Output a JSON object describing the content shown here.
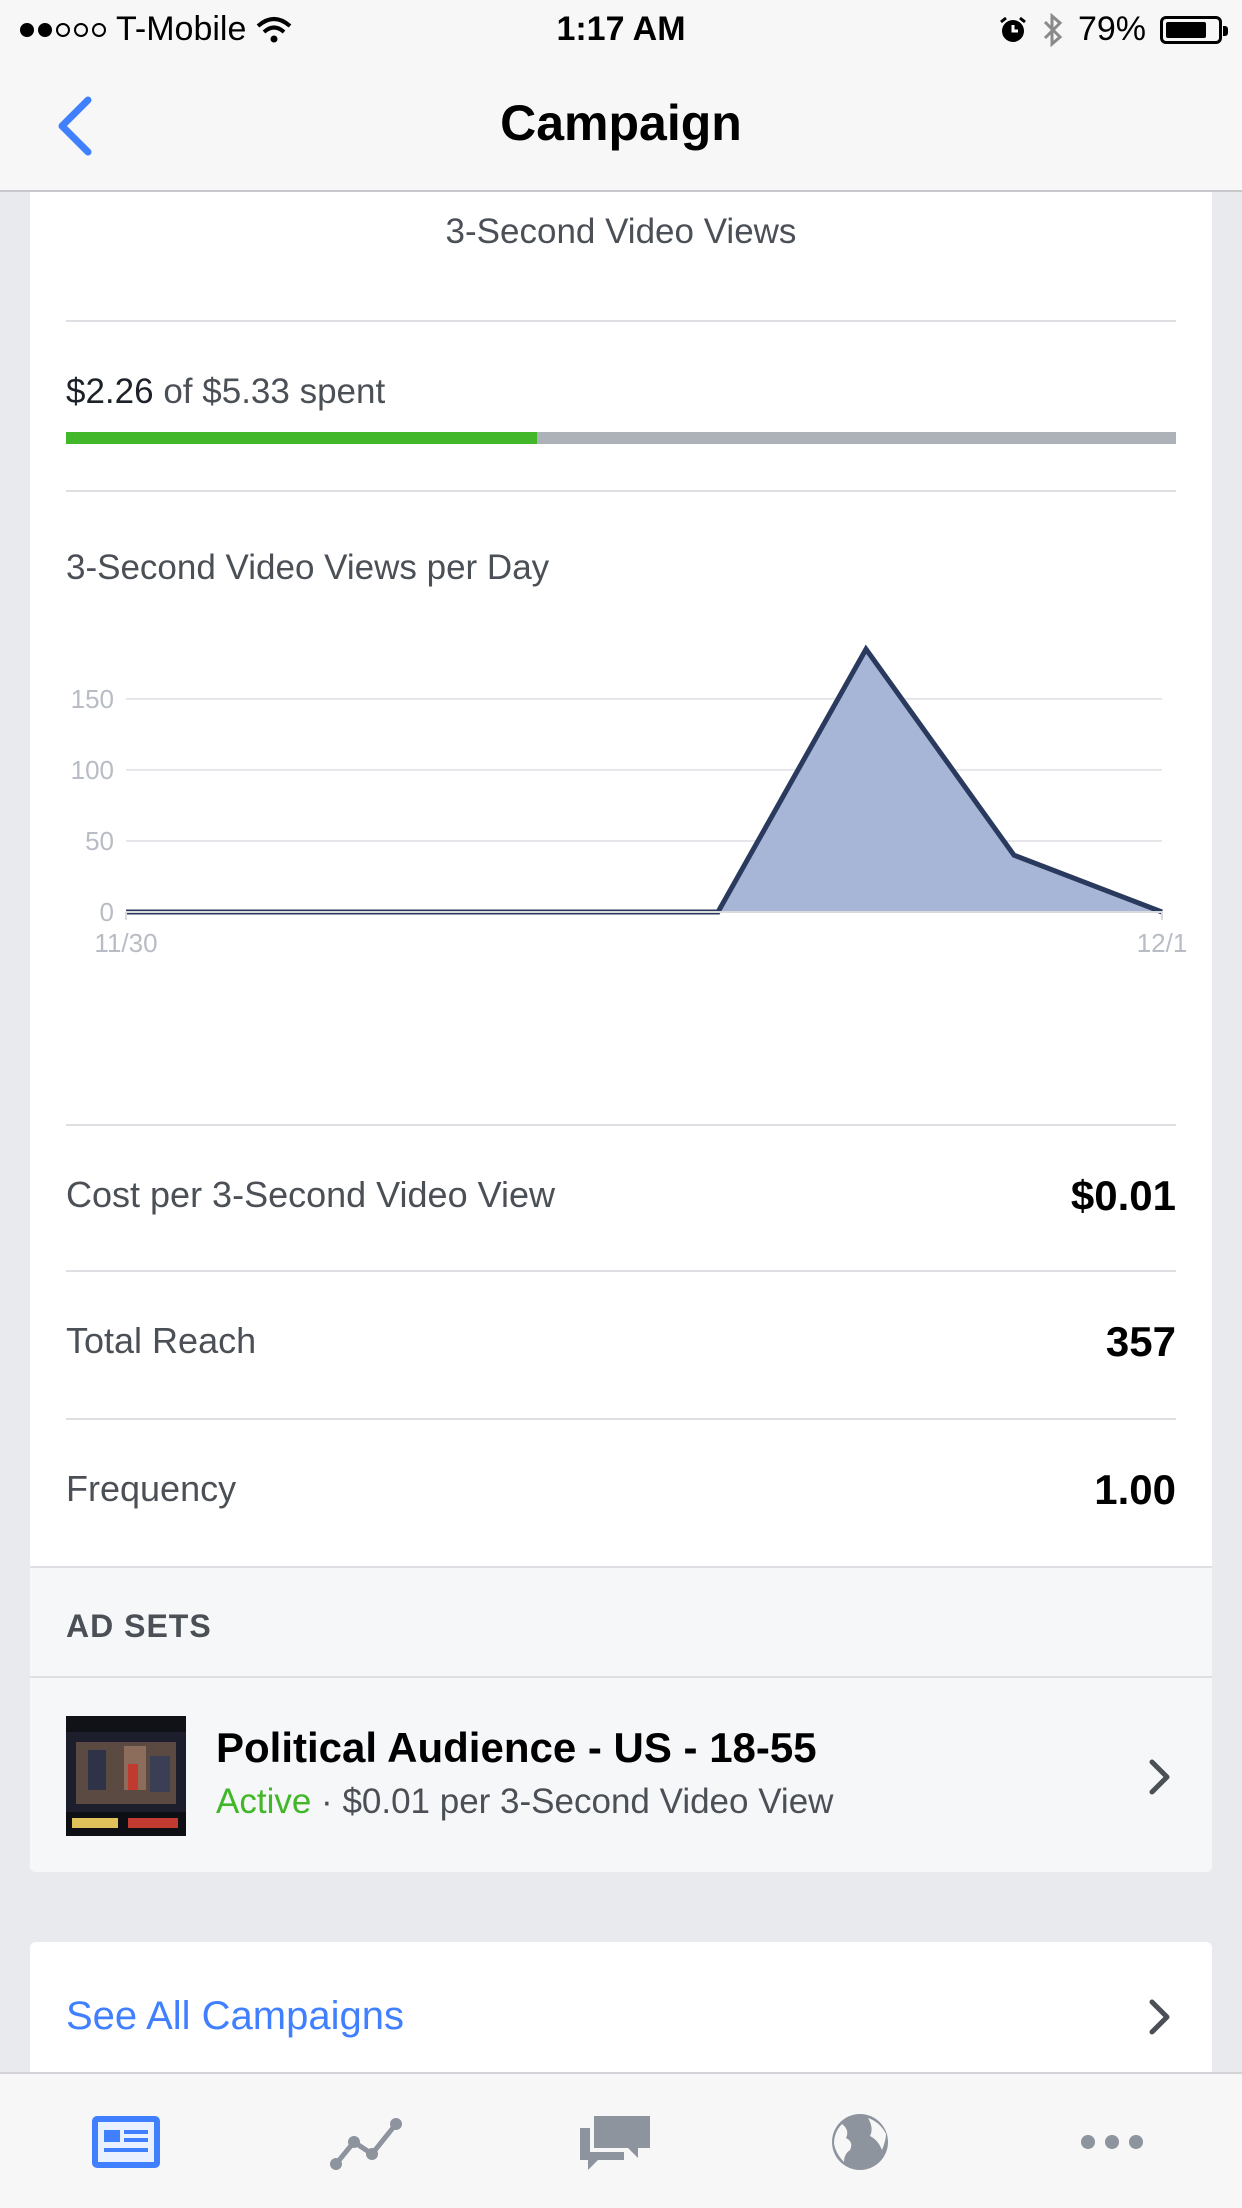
{
  "status_bar": {
    "carrier": "T-Mobile",
    "time": "1:17 AM",
    "battery": "79%"
  },
  "nav": {
    "title": "Campaign"
  },
  "metric": {
    "title": "3-Second Video Views"
  },
  "budget": {
    "spent": "$2.26",
    "of_label": "of",
    "total": "$5.33",
    "suffix": "spent",
    "progress_fraction": 0.424
  },
  "chart_data": {
    "type": "area",
    "title": "3-Second Video Views per Day",
    "x": [
      "11/30",
      "",
      "",
      "",
      "",
      "",
      "",
      "12/1"
    ],
    "x_tick_labels": [
      "11/30",
      "12/1"
    ],
    "values": [
      0,
      0,
      0,
      0,
      0,
      185,
      40,
      0
    ],
    "y_ticks": [
      0,
      50,
      100,
      150
    ],
    "ylim": [
      0,
      190
    ],
    "grid": true,
    "legend": "none",
    "colors": {
      "line": "#2a3a5e",
      "fill": "#a7b6d6"
    }
  },
  "stats": [
    {
      "label": "Cost per 3-Second Video View",
      "value": "$0.01"
    },
    {
      "label": "Total Reach",
      "value": "357"
    },
    {
      "label": "Frequency",
      "value": "1.00"
    }
  ],
  "ad_sets": {
    "header": "AD SETS",
    "items": [
      {
        "name": "Political Audience - US - 18-55",
        "status": "Active",
        "separator": "·",
        "detail": "$0.01 per 3-Second Video View"
      }
    ]
  },
  "see_all": {
    "label": "See All Campaigns"
  },
  "tab_bar": {
    "items": [
      "news-feed-icon",
      "insights-icon",
      "messages-icon",
      "globe-icon",
      "more-icon"
    ],
    "active_index": 0
  },
  "colors": {
    "accent": "#4080ff",
    "active_green": "#42b72a",
    "tab_inactive": "#8d949e"
  }
}
